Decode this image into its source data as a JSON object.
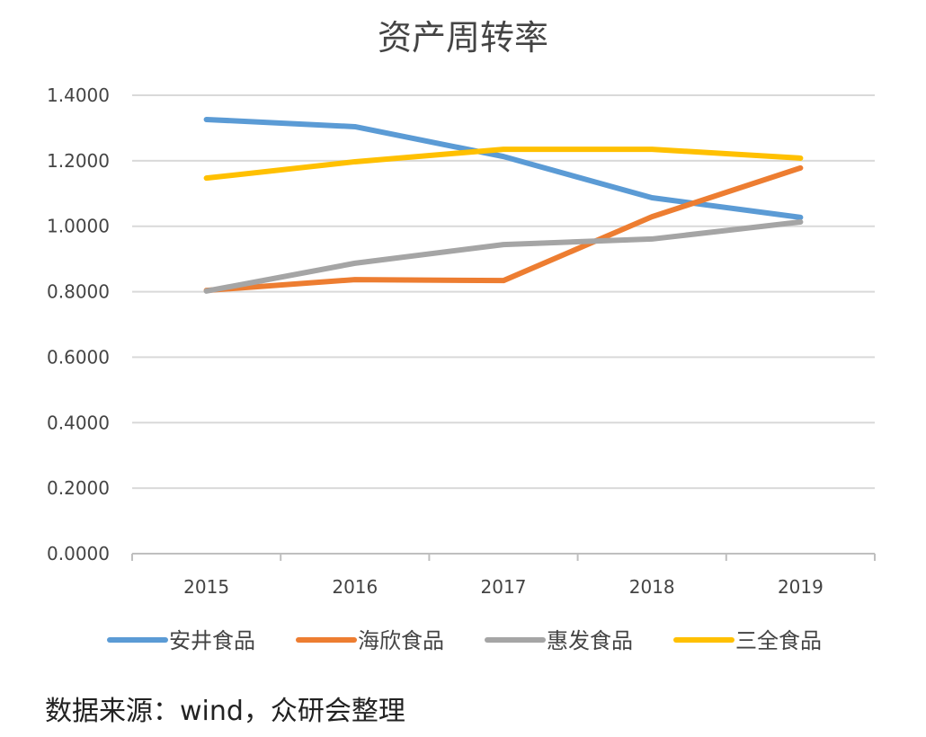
{
  "chart_data": {
    "type": "line",
    "title": "资产周转率",
    "xlabel": "",
    "ylabel": "",
    "categories": [
      "2015",
      "2016",
      "2017",
      "2018",
      "2019"
    ],
    "ylim": [
      0,
      1.4
    ],
    "yticks": [
      "0.0000",
      "0.2000",
      "0.4000",
      "0.6000",
      "0.8000",
      "1.0000",
      "1.2000",
      "1.4000"
    ],
    "grid": true,
    "legend_placement": "bottom",
    "series": [
      {
        "name": "安井食品",
        "color": "#5b9bd5",
        "values": [
          1.326,
          1.304,
          1.213,
          1.087,
          1.027
        ]
      },
      {
        "name": "海欣食品",
        "color": "#ed7d31",
        "values": [
          0.804,
          0.837,
          0.834,
          1.029,
          1.178
        ]
      },
      {
        "name": "惠发食品",
        "color": "#a5a5a5",
        "values": [
          0.802,
          0.887,
          0.944,
          0.961,
          1.013
        ]
      },
      {
        "name": "三全食品",
        "color": "#ffc000",
        "values": [
          1.147,
          1.197,
          1.235,
          1.235,
          1.208
        ]
      }
    ]
  },
  "source": "数据来源：wind，众研会整理"
}
